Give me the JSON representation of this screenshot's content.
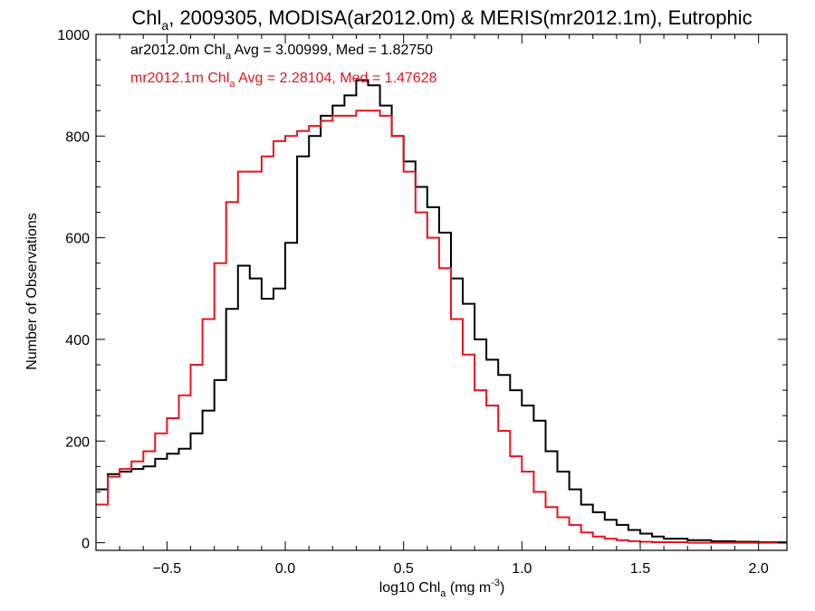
{
  "chart_data": {
    "type": "line",
    "title": {
      "pre": "Chl",
      "sub": "a",
      "post": ", 2009305, MODISA(ar2012.0m) & MERIS(mr2012.1m), Eutrophic"
    },
    "xlabel": {
      "pre": "log10 Chl",
      "sub": "a",
      "mid": " (mg m",
      "sup": "-3",
      "post": ")"
    },
    "ylabel": "Number of Observations",
    "xlim": [
      -0.8,
      2.12
    ],
    "ylim": [
      -15,
      1000
    ],
    "x_ticks": [
      -0.5,
      0.0,
      0.5,
      1.0,
      1.5,
      2.0
    ],
    "x_tick_labels": [
      "−0.5",
      "0.0",
      "0.5",
      "1.0",
      "1.5",
      "2.0"
    ],
    "y_ticks": [
      0,
      200,
      400,
      600,
      800,
      1000
    ],
    "y_tick_labels": [
      "0",
      "200",
      "400",
      "600",
      "800",
      "1000"
    ],
    "grid": false,
    "annotations": [
      {
        "pre": "ar2012.0m Chl",
        "sub": "a",
        "post": " Avg = 3.00999, Med = 1.82750",
        "color": "#000000"
      },
      {
        "pre": "mr2012.1m Chl",
        "sub": "a",
        "post": " Avg = 2.28104, Med = 1.47628",
        "color": "#e8141c"
      }
    ],
    "series": [
      {
        "color": "#000000",
        "x": [
          -0.8,
          -0.75,
          -0.7,
          -0.65,
          -0.6,
          -0.55,
          -0.5,
          -0.45,
          -0.4,
          -0.35,
          -0.3,
          -0.25,
          -0.2,
          -0.15,
          -0.1,
          -0.05,
          0.0,
          0.05,
          0.1,
          0.15,
          0.2,
          0.25,
          0.3,
          0.35,
          0.4,
          0.45,
          0.5,
          0.55,
          0.6,
          0.65,
          0.7,
          0.75,
          0.8,
          0.85,
          0.9,
          0.95,
          1.0,
          1.05,
          1.1,
          1.15,
          1.2,
          1.25,
          1.3,
          1.35,
          1.4,
          1.45,
          1.5,
          1.55,
          1.6,
          1.7,
          1.8,
          1.9,
          2.0,
          2.12
        ],
        "y": [
          105,
          135,
          140,
          145,
          150,
          165,
          175,
          185,
          215,
          260,
          320,
          460,
          545,
          520,
          480,
          500,
          590,
          760,
          800,
          840,
          860,
          880,
          910,
          900,
          860,
          800,
          750,
          700,
          660,
          610,
          520,
          470,
          400,
          360,
          330,
          300,
          270,
          240,
          180,
          140,
          105,
          75,
          60,
          45,
          35,
          25,
          18,
          12,
          8,
          5,
          3,
          2,
          1,
          1
        ]
      },
      {
        "color": "#e8141c",
        "x": [
          -0.8,
          -0.75,
          -0.7,
          -0.65,
          -0.6,
          -0.55,
          -0.5,
          -0.45,
          -0.4,
          -0.35,
          -0.3,
          -0.25,
          -0.2,
          -0.15,
          -0.1,
          -0.05,
          0.0,
          0.05,
          0.1,
          0.15,
          0.2,
          0.25,
          0.3,
          0.35,
          0.4,
          0.45,
          0.5,
          0.55,
          0.6,
          0.65,
          0.7,
          0.75,
          0.8,
          0.85,
          0.9,
          0.95,
          1.0,
          1.05,
          1.1,
          1.15,
          1.2,
          1.25,
          1.3,
          1.35,
          1.4,
          1.45,
          1.5,
          1.55,
          1.6,
          1.7,
          1.8,
          1.9,
          2.0,
          2.12
        ],
        "y": [
          75,
          130,
          145,
          160,
          180,
          215,
          245,
          290,
          350,
          440,
          550,
          670,
          730,
          730,
          760,
          790,
          800,
          810,
          820,
          830,
          840,
          840,
          850,
          850,
          840,
          800,
          730,
          650,
          600,
          540,
          440,
          370,
          300,
          270,
          220,
          170,
          140,
          100,
          70,
          50,
          35,
          20,
          12,
          8,
          5,
          3,
          2,
          1,
          1,
          0,
          0,
          0,
          0,
          0
        ]
      }
    ]
  }
}
